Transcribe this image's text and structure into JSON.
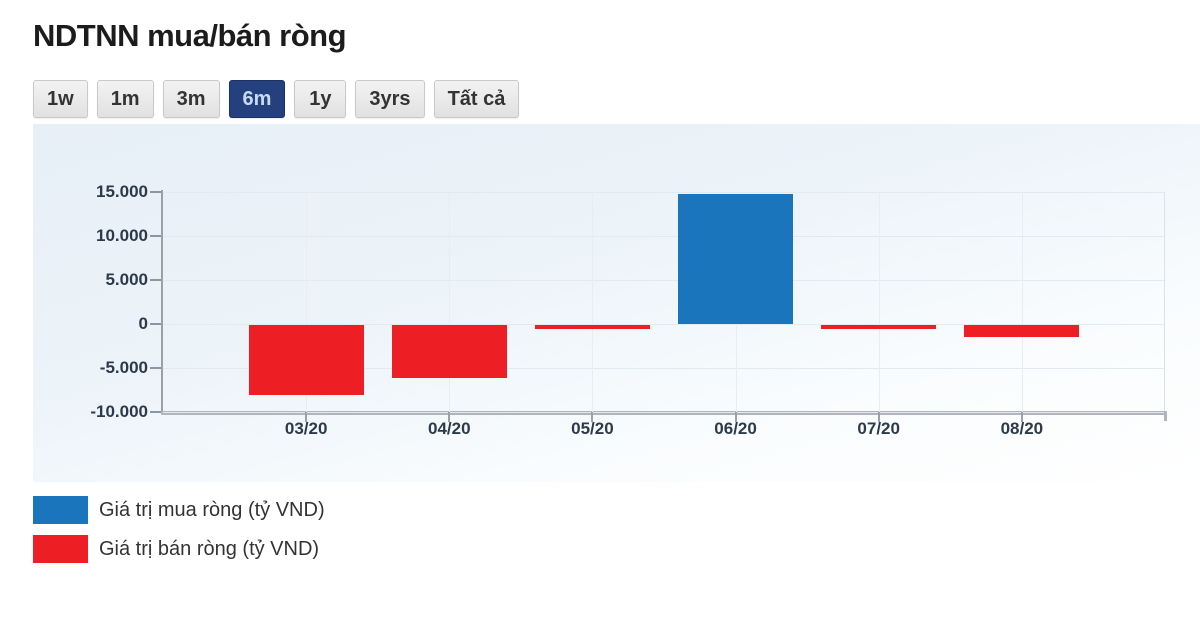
{
  "header": {
    "title": "NDTNN mua/bán ròng"
  },
  "toolbar": {
    "buttons": [
      {
        "id": "1w",
        "label": "1w",
        "active": false
      },
      {
        "id": "1m",
        "label": "1m",
        "active": false
      },
      {
        "id": "3m",
        "label": "3m",
        "active": false
      },
      {
        "id": "6m",
        "label": "6m",
        "active": true
      },
      {
        "id": "1y",
        "label": "1y",
        "active": false
      },
      {
        "id": "3yrs",
        "label": "3yrs",
        "active": false
      },
      {
        "id": "all",
        "label": "Tất cả",
        "active": false
      }
    ]
  },
  "colors": {
    "positive_bar": "#1b75bc",
    "negative_bar": "#ed1f24",
    "active_button_bg": "#24407f",
    "axis_label": "#2c3a49"
  },
  "chart_data": {
    "type": "bar",
    "title": "NDTNN mua/bán ròng",
    "categories": [
      "03/20",
      "04/20",
      "05/20",
      "06/20",
      "07/20",
      "08/20"
    ],
    "values": [
      -8000,
      -6000,
      -450,
      14800,
      -400,
      -1350
    ],
    "unit": "tỷ VND",
    "xlabel": "",
    "ylabel": "",
    "ylim": [
      -10000,
      15000
    ],
    "grid": true,
    "legend_position": "bottom-left",
    "y_ticks": [
      {
        "label": "15.000",
        "value": 15000
      },
      {
        "label": "10.000",
        "value": 10000
      },
      {
        "label": "5.000",
        "value": 5000
      },
      {
        "label": "0",
        "value": 0
      },
      {
        "label": "-5.000",
        "value": -5000
      },
      {
        "label": "-10.000",
        "value": -10000
      }
    ],
    "series": [
      {
        "name": "Giá trị mua ròng (tỷ VND)",
        "color": "#1b75bc",
        "role": "positive"
      },
      {
        "name": "Giá trị bán ròng (tỷ VND)",
        "color": "#ed1f24",
        "role": "negative"
      }
    ]
  }
}
